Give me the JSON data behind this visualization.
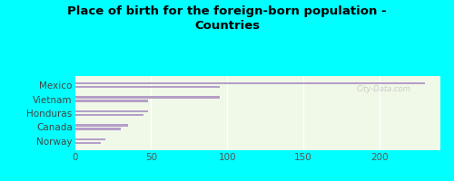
{
  "title": "Place of birth for the foreign-born population -\nCountries",
  "categories": [
    "Mexico",
    "Vietnam",
    "Honduras",
    "Canada",
    "Norway"
  ],
  "values1": [
    230,
    95,
    48,
    35,
    20
  ],
  "values2": [
    95,
    48,
    45,
    30,
    17
  ],
  "bar_color": "#b49fc8",
  "background_outer": "#00ffff",
  "background_inner": "#e8f5e0",
  "xticks": [
    0,
    50,
    100,
    150,
    200
  ],
  "xlim": [
    0,
    240
  ],
  "title_fontsize": 9.5,
  "tick_fontsize": 7.5,
  "label_fontsize": 7.5,
  "watermark": "City-Data.com"
}
